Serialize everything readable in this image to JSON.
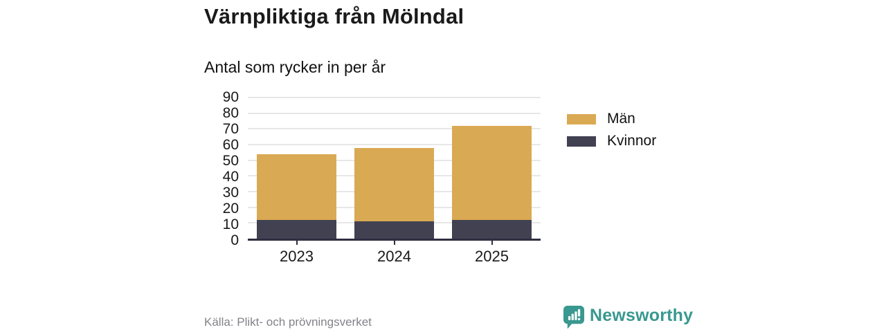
{
  "title": "Värnpliktiga från Mölndal",
  "subtitle": "Antal som rycker in per år",
  "legend": [
    {
      "label": "Män",
      "color": "#daa953"
    },
    {
      "label": "Kvinnor",
      "color": "#414152"
    }
  ],
  "source": {
    "text": "Källa: Plikt- och prövningsverket"
  },
  "brand": {
    "name": "Newsworthy",
    "color": "#399890",
    "icon": "speech-bubble-bar-chart-icon"
  },
  "colors": {
    "grid": "#e7e7e7",
    "axis": "#2f2e41",
    "text": "#191919",
    "muted": "#82828a"
  },
  "chart_data": {
    "type": "bar",
    "stacked": true,
    "title": "Värnpliktiga från Mölndal",
    "subtitle": "Antal som rycker in per år",
    "categories": [
      "2023",
      "2024",
      "2025"
    ],
    "series": [
      {
        "name": "Kvinnor",
        "color": "#414152",
        "values": [
          12,
          11,
          12
        ]
      },
      {
        "name": "Män",
        "color": "#daa953",
        "values": [
          42,
          47,
          60
        ]
      }
    ],
    "totals": [
      54,
      58,
      72
    ],
    "xlabel": "",
    "ylabel": "",
    "ylim": [
      0,
      90
    ],
    "yticks": [
      0,
      10,
      20,
      30,
      40,
      50,
      60,
      70,
      80,
      90
    ],
    "grid": true,
    "legend_position": "right"
  }
}
